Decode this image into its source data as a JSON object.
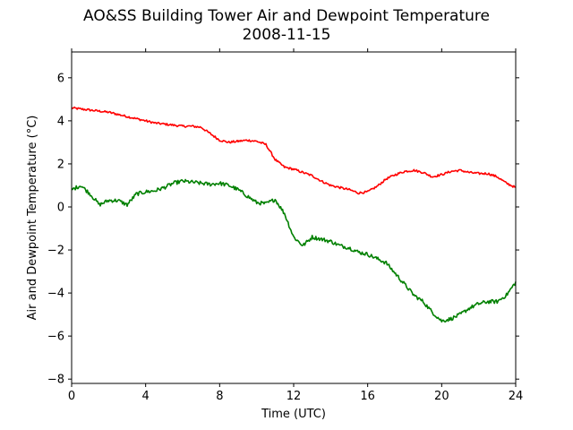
{
  "chart_data": {
    "type": "line",
    "title": "AO&SS Building Tower Air and Dewpoint Temperature",
    "subtitle": "2008-11-15",
    "xlabel": "Time (UTC)",
    "ylabel": "Air and Dewpoint Temperature (°C)",
    "xlim": [
      0,
      24
    ],
    "ylim": [
      -8.2,
      7.2
    ],
    "xticks": [
      0,
      4,
      8,
      12,
      16,
      20,
      24
    ],
    "yticks": [
      -8,
      -6,
      -4,
      -2,
      0,
      2,
      4,
      6
    ],
    "grid": false,
    "legend": "none",
    "series": [
      {
        "color": "#ff0000",
        "x": [
          0,
          0.5,
          1,
          1.5,
          2,
          2.5,
          3,
          3.5,
          4,
          4.5,
          5,
          5.5,
          6,
          6.5,
          7,
          7.5,
          8,
          8.5,
          9,
          9.5,
          10,
          10.5,
          11,
          11.5,
          12,
          12.5,
          13,
          13.5,
          14,
          14.5,
          15,
          15.5,
          16,
          16.5,
          17,
          17.5,
          18,
          18.5,
          19,
          19.5,
          20,
          20.5,
          21,
          21.5,
          22,
          22.5,
          23,
          23.5,
          24
        ],
        "y": [
          4.6,
          4.55,
          4.5,
          4.45,
          4.4,
          4.3,
          4.2,
          4.1,
          4.0,
          3.9,
          3.85,
          3.8,
          3.75,
          3.75,
          3.7,
          3.4,
          3.1,
          3.0,
          3.05,
          3.1,
          3.05,
          2.9,
          2.2,
          1.85,
          1.75,
          1.6,
          1.45,
          1.2,
          1.0,
          0.9,
          0.8,
          0.65,
          0.7,
          0.95,
          1.3,
          1.5,
          1.65,
          1.7,
          1.6,
          1.4,
          1.5,
          1.65,
          1.7,
          1.6,
          1.55,
          1.55,
          1.4,
          1.1,
          0.9
        ]
      },
      {
        "color": "#008000",
        "x": [
          0,
          0.5,
          1,
          1.5,
          2,
          2.5,
          3,
          3.5,
          4,
          4.5,
          5,
          5.5,
          6,
          6.5,
          7,
          7.5,
          8,
          8.5,
          9,
          9.5,
          10,
          10.5,
          11,
          11.5,
          12,
          12.5,
          13,
          13.5,
          14,
          14.5,
          15,
          15.5,
          16,
          16.5,
          17,
          17.5,
          18,
          18.5,
          19,
          19.5,
          20,
          20.5,
          21,
          21.5,
          22,
          22.5,
          23,
          23.5,
          24
        ],
        "y": [
          0.8,
          1.0,
          0.6,
          0.1,
          0.3,
          0.3,
          0.1,
          0.6,
          0.7,
          0.75,
          0.9,
          1.1,
          1.2,
          1.15,
          1.1,
          1.05,
          1.1,
          1.0,
          0.8,
          0.5,
          0.2,
          0.15,
          0.35,
          -0.3,
          -1.4,
          -1.8,
          -1.4,
          -1.5,
          -1.6,
          -1.8,
          -1.9,
          -2.1,
          -2.2,
          -2.4,
          -2.6,
          -3.1,
          -3.6,
          -4.1,
          -4.4,
          -4.9,
          -5.3,
          -5.2,
          -5.0,
          -4.7,
          -4.5,
          -4.4,
          -4.4,
          -4.1,
          -3.5
        ]
      }
    ]
  }
}
